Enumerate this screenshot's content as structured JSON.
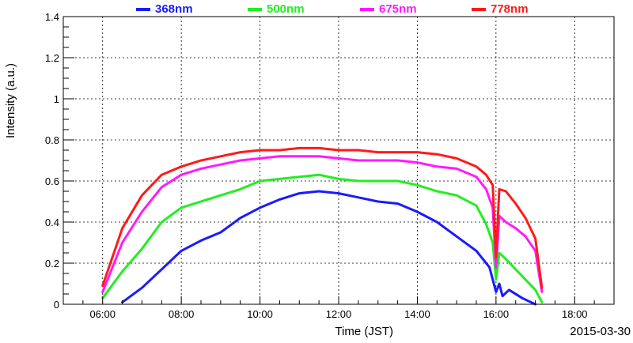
{
  "chart_data": {
    "type": "line",
    "xlabel": "Time (JST)",
    "ylabel": "Intensity (a.u.)",
    "date_label": "2015-03-30",
    "xlim": [
      "05:00",
      "19:00"
    ],
    "ylim": [
      0,
      1.4
    ],
    "grid": true,
    "legend_position": "top",
    "x_ticks": [
      "06:00",
      "08:00",
      "10:00",
      "12:00",
      "14:00",
      "16:00",
      "18:00"
    ],
    "y_ticks": [
      "0",
      "0.2",
      "0.4",
      "0.6",
      "0.8",
      "1",
      "1.2",
      "1.4"
    ],
    "series": [
      {
        "name": "368nm",
        "color": "#1a1aff",
        "points": [
          [
            "06:30",
            0.01
          ],
          [
            "07:00",
            0.08
          ],
          [
            "07:30",
            0.17
          ],
          [
            "08:00",
            0.26
          ],
          [
            "08:30",
            0.31
          ],
          [
            "09:00",
            0.35
          ],
          [
            "09:30",
            0.42
          ],
          [
            "10:00",
            0.47
          ],
          [
            "10:30",
            0.51
          ],
          [
            "11:00",
            0.54
          ],
          [
            "11:30",
            0.55
          ],
          [
            "12:00",
            0.54
          ],
          [
            "12:30",
            0.52
          ],
          [
            "13:00",
            0.5
          ],
          [
            "13:30",
            0.49
          ],
          [
            "14:00",
            0.45
          ],
          [
            "14:30",
            0.4
          ],
          [
            "15:00",
            0.33
          ],
          [
            "15:30",
            0.26
          ],
          [
            "15:50",
            0.18
          ],
          [
            "16:00",
            0.06
          ],
          [
            "16:05",
            0.1
          ],
          [
            "16:10",
            0.04
          ],
          [
            "16:20",
            0.07
          ],
          [
            "16:40",
            0.03
          ],
          [
            "17:00",
            0.0
          ]
        ]
      },
      {
        "name": "500nm",
        "color": "#22ee22",
        "points": [
          [
            "06:00",
            0.03
          ],
          [
            "06:30",
            0.16
          ],
          [
            "07:00",
            0.27
          ],
          [
            "07:30",
            0.4
          ],
          [
            "08:00",
            0.47
          ],
          [
            "08:30",
            0.5
          ],
          [
            "09:00",
            0.53
          ],
          [
            "09:30",
            0.56
          ],
          [
            "10:00",
            0.6
          ],
          [
            "10:30",
            0.61
          ],
          [
            "11:00",
            0.62
          ],
          [
            "11:30",
            0.63
          ],
          [
            "12:00",
            0.61
          ],
          [
            "12:30",
            0.6
          ],
          [
            "13:00",
            0.6
          ],
          [
            "13:30",
            0.6
          ],
          [
            "14:00",
            0.58
          ],
          [
            "14:30",
            0.55
          ],
          [
            "15:00",
            0.53
          ],
          [
            "15:30",
            0.48
          ],
          [
            "15:45",
            0.39
          ],
          [
            "15:55",
            0.3
          ],
          [
            "16:00",
            0.12
          ],
          [
            "16:05",
            0.25
          ],
          [
            "16:15",
            0.22
          ],
          [
            "16:30",
            0.17
          ],
          [
            "17:00",
            0.07
          ],
          [
            "17:10",
            0.01
          ]
        ]
      },
      {
        "name": "675nm",
        "color": "#ff1aff",
        "points": [
          [
            "06:00",
            0.06
          ],
          [
            "06:30",
            0.3
          ],
          [
            "07:00",
            0.45
          ],
          [
            "07:30",
            0.57
          ],
          [
            "08:00",
            0.63
          ],
          [
            "08:30",
            0.66
          ],
          [
            "09:00",
            0.68
          ],
          [
            "09:30",
            0.7
          ],
          [
            "10:00",
            0.71
          ],
          [
            "10:30",
            0.72
          ],
          [
            "11:00",
            0.72
          ],
          [
            "11:30",
            0.72
          ],
          [
            "12:00",
            0.71
          ],
          [
            "12:30",
            0.7
          ],
          [
            "13:00",
            0.7
          ],
          [
            "13:30",
            0.7
          ],
          [
            "14:00",
            0.69
          ],
          [
            "14:30",
            0.67
          ],
          [
            "15:00",
            0.66
          ],
          [
            "15:30",
            0.62
          ],
          [
            "15:45",
            0.56
          ],
          [
            "15:55",
            0.47
          ],
          [
            "16:00",
            0.18
          ],
          [
            "16:05",
            0.43
          ],
          [
            "16:15",
            0.4
          ],
          [
            "16:30",
            0.37
          ],
          [
            "16:45",
            0.33
          ],
          [
            "17:00",
            0.26
          ],
          [
            "17:10",
            0.06
          ]
        ]
      },
      {
        "name": "778nm",
        "color": "#ff1a1a",
        "points": [
          [
            "06:00",
            0.09
          ],
          [
            "06:30",
            0.37
          ],
          [
            "07:00",
            0.53
          ],
          [
            "07:30",
            0.63
          ],
          [
            "08:00",
            0.67
          ],
          [
            "08:30",
            0.7
          ],
          [
            "09:00",
            0.72
          ],
          [
            "09:30",
            0.74
          ],
          [
            "10:00",
            0.75
          ],
          [
            "10:30",
            0.75
          ],
          [
            "11:00",
            0.76
          ],
          [
            "11:30",
            0.76
          ],
          [
            "12:00",
            0.75
          ],
          [
            "12:30",
            0.75
          ],
          [
            "13:00",
            0.74
          ],
          [
            "13:30",
            0.74
          ],
          [
            "14:00",
            0.74
          ],
          [
            "14:30",
            0.73
          ],
          [
            "15:00",
            0.71
          ],
          [
            "15:30",
            0.67
          ],
          [
            "15:45",
            0.63
          ],
          [
            "15:55",
            0.58
          ],
          [
            "16:00",
            0.23
          ],
          [
            "16:05",
            0.56
          ],
          [
            "16:15",
            0.55
          ],
          [
            "16:30",
            0.49
          ],
          [
            "16:45",
            0.42
          ],
          [
            "17:00",
            0.32
          ],
          [
            "17:10",
            0.08
          ]
        ]
      }
    ]
  }
}
